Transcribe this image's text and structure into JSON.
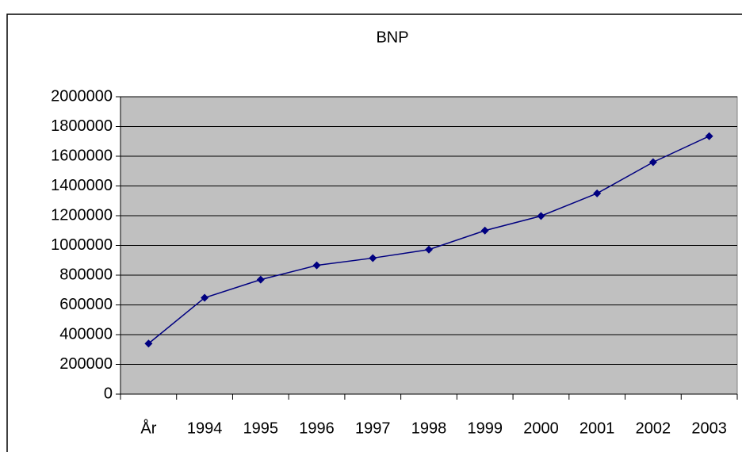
{
  "chart_data": {
    "type": "line",
    "title": "BNP",
    "categories": [
      "År",
      "1994",
      "1995",
      "1996",
      "1997",
      "1998",
      "1999",
      "2000",
      "2001",
      "2002",
      "2003"
    ],
    "series": [
      {
        "name": "BNP",
        "color": "#000080",
        "values": [
          340000,
          648000,
          770000,
          866000,
          915000,
          972000,
          1100000,
          1198000,
          1350000,
          1560000,
          1735000
        ]
      }
    ],
    "ylim": [
      0,
      2000000
    ],
    "yticks": [
      0,
      200000,
      400000,
      600000,
      800000,
      1000000,
      1200000,
      1400000,
      1600000,
      1800000,
      2000000
    ],
    "grid": true,
    "plot_background": "#c0c0c0"
  }
}
